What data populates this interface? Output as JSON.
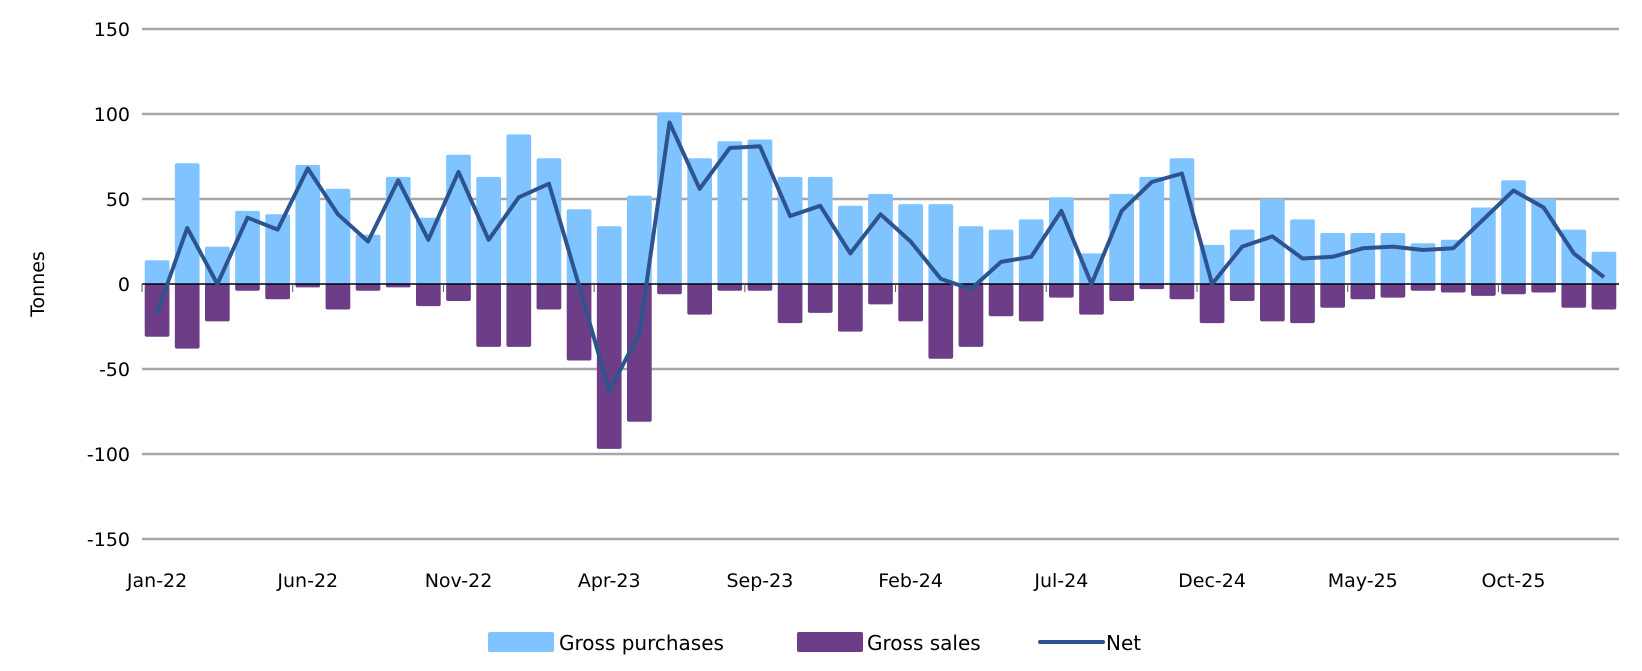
{
  "chart_data": {
    "type": "bar",
    "title": "",
    "xlabel": "",
    "ylabel": "Tonnes",
    "ylim": [
      -150,
      150
    ],
    "y_ticks": [
      150,
      100,
      50,
      0,
      -50,
      -100,
      -150
    ],
    "x_tick_labels": [
      "Jan-22",
      "Jun-22",
      "Nov-22",
      "Apr-23",
      "Sep-23",
      "Feb-24",
      "Jul-24",
      "Dec-24",
      "May-25",
      "Oct-25"
    ],
    "x_tick_every": 5,
    "grid": true,
    "legend_position": "bottom",
    "series": [
      {
        "name": "Gross purchases",
        "type": "bar",
        "color": "#80C4FF",
        "values": [
          14,
          71,
          22,
          43,
          41,
          70,
          56,
          29,
          63,
          39,
          76,
          63,
          88,
          74,
          44,
          34,
          52,
          101,
          74,
          84,
          85,
          63,
          63,
          46,
          53,
          47,
          47,
          34,
          32,
          38,
          51,
          18,
          53,
          63,
          74,
          23,
          32,
          50,
          38,
          30,
          30,
          30,
          24,
          26,
          45,
          61,
          50,
          32,
          19
        ]
      },
      {
        "name": "Gross sales",
        "type": "bar",
        "color": "#6E3D87",
        "values": [
          -31,
          -38,
          -22,
          -4,
          -9,
          -2,
          -15,
          -4,
          -2,
          -13,
          -10,
          -37,
          -37,
          -15,
          -45,
          -97,
          -81,
          -6,
          -18,
          -4,
          -4,
          -23,
          -17,
          -28,
          -12,
          -22,
          -44,
          -37,
          -19,
          -22,
          -8,
          -18,
          -10,
          -3,
          -9,
          -23,
          -10,
          -22,
          -23,
          -14,
          -9,
          -8,
          -4,
          -5,
          -7,
          -6,
          -5,
          -14,
          -15
        ]
      },
      {
        "name": "Net",
        "type": "line",
        "color": "#2E5490",
        "values": [
          -17,
          33,
          0,
          39,
          32,
          68,
          41,
          25,
          61,
          26,
          66,
          26,
          51,
          59,
          -1,
          -63,
          -29,
          95,
          56,
          80,
          81,
          40,
          46,
          18,
          41,
          25,
          3,
          -3,
          13,
          16,
          43,
          0,
          43,
          60,
          65,
          0,
          22,
          28,
          15,
          16,
          21,
          22,
          20,
          21,
          38,
          55,
          45,
          18,
          4
        ]
      }
    ],
    "gridline_color": "#A6A6A6"
  }
}
